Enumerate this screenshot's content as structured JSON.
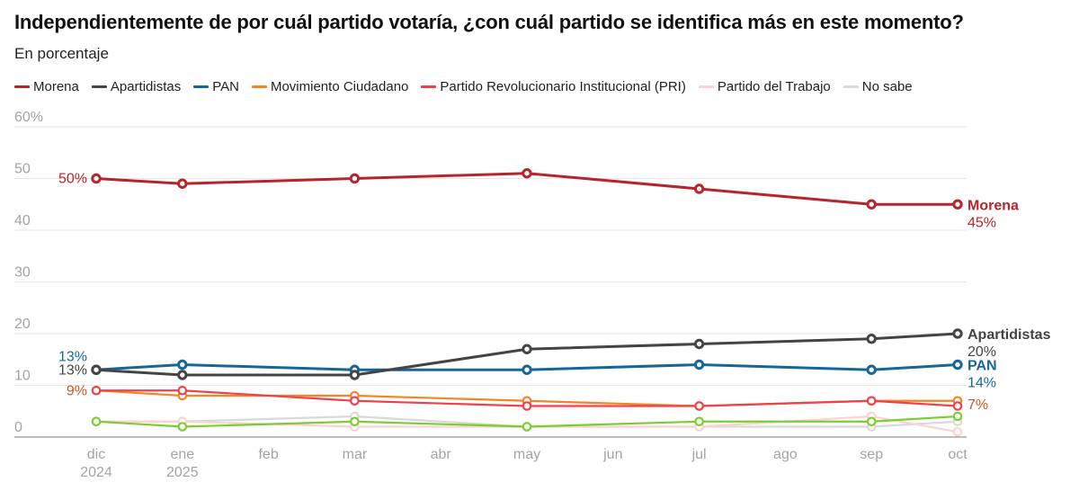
{
  "chart_data": {
    "type": "line",
    "title": "Independientemente de por cuál partido votaría, ¿con cuál partido se identifica más en este momento?",
    "subtitle": "En porcentaje",
    "xlabel": "",
    "ylabel": "",
    "ylim": [
      0,
      60
    ],
    "yticks": [
      "0",
      "10",
      "20",
      "30",
      "40",
      "50",
      "60%"
    ],
    "ytick_values": [
      0,
      10,
      20,
      30,
      40,
      50,
      60
    ],
    "grid": true,
    "legend_position": "top-left",
    "x_ticks": [
      {
        "line1": "dic",
        "line2": "2024",
        "index": 0
      },
      {
        "line1": "ene",
        "line2": "2025",
        "index": 1
      },
      {
        "line1": "feb",
        "line2": "",
        "index": 2
      },
      {
        "line1": "mar",
        "line2": "",
        "index": 3
      },
      {
        "line1": "abr",
        "line2": "",
        "index": 4
      },
      {
        "line1": "may",
        "line2": "",
        "index": 5
      },
      {
        "line1": "jun",
        "line2": "",
        "index": 6
      },
      {
        "line1": "jul",
        "line2": "",
        "index": 7
      },
      {
        "line1": "ago",
        "line2": "",
        "index": 8
      },
      {
        "line1": "sep",
        "line2": "",
        "index": 9
      },
      {
        "line1": "oct",
        "line2": "",
        "index": 10
      }
    ],
    "x": [
      "dic 2024",
      "ene 2025",
      "mar",
      "may",
      "jul",
      "sep",
      "oct"
    ],
    "x_index": [
      0,
      1,
      3,
      5,
      7,
      9,
      10
    ],
    "series": [
      {
        "name": "No sabe",
        "color": "#d9d9d9",
        "values": [
          3,
          3,
          4,
          2,
          2,
          2,
          3
        ],
        "in_legend": true
      },
      {
        "name": "Partido del Trabajo",
        "color": "#fbd3d3",
        "values": [
          3,
          3,
          2,
          2,
          2,
          4,
          1
        ],
        "in_legend": true
      },
      {
        "name": "(verde)",
        "color": "#7ccd34",
        "values": [
          3,
          2,
          3,
          2,
          3,
          3,
          4
        ],
        "in_legend": false
      },
      {
        "name": "Movimiento Ciudadano",
        "color": "#f68425",
        "values": [
          9,
          8,
          8,
          7,
          6,
          7,
          7
        ],
        "in_legend": true
      },
      {
        "name": "Partido Revolucionario Institucional (PRI)",
        "color": "#f2404b",
        "values": [
          9,
          9,
          7,
          6,
          6,
          7,
          6
        ],
        "in_legend": true
      },
      {
        "name": "PAN",
        "color": "#17669a",
        "values": [
          13,
          14,
          13,
          13,
          14,
          13,
          14
        ],
        "in_legend": true
      },
      {
        "name": "Apartidistas",
        "color": "#444444",
        "values": [
          13,
          12,
          12,
          17,
          18,
          19,
          20
        ],
        "in_legend": true
      },
      {
        "name": "Morena",
        "color": "#b5252b",
        "values": [
          50,
          49,
          50,
          51,
          48,
          45,
          45
        ],
        "in_legend": true
      }
    ],
    "legend": [
      {
        "name": "Morena",
        "color": "#b5252b"
      },
      {
        "name": "Apartidistas",
        "color": "#444444"
      },
      {
        "name": "PAN",
        "color": "#17669a"
      },
      {
        "name": "Movimiento Ciudadano",
        "color": "#f68425"
      },
      {
        "name": "Partido Revolucionario Institucional (PRI)",
        "color": "#f2404b"
      },
      {
        "name": "Partido del Trabajo",
        "color": "#fbd3d3"
      },
      {
        "name": "No sabe",
        "color": "#d9d9d9"
      }
    ],
    "start_labels": [
      {
        "text": "50%",
        "color": "#b5252b",
        "value": 50
      },
      {
        "text": "13%",
        "color": "#17669a",
        "value": 13,
        "nudge": "up"
      },
      {
        "text": "13%",
        "color": "#444444",
        "value": 13
      },
      {
        "text": "9%",
        "color": "#c8541f",
        "value": 9
      }
    ],
    "end_labels": [
      {
        "name": "Morena",
        "pct": "45%",
        "color": "#b5252b",
        "value": 45
      },
      {
        "name": "Apartidistas",
        "pct": "20%",
        "color": "#444444",
        "value": 20
      },
      {
        "name": "PAN",
        "pct": "14%",
        "color": "#17669a",
        "value": 14
      },
      {
        "name": "",
        "pct": "7%",
        "color": "#c8541f",
        "value": 7
      }
    ]
  }
}
